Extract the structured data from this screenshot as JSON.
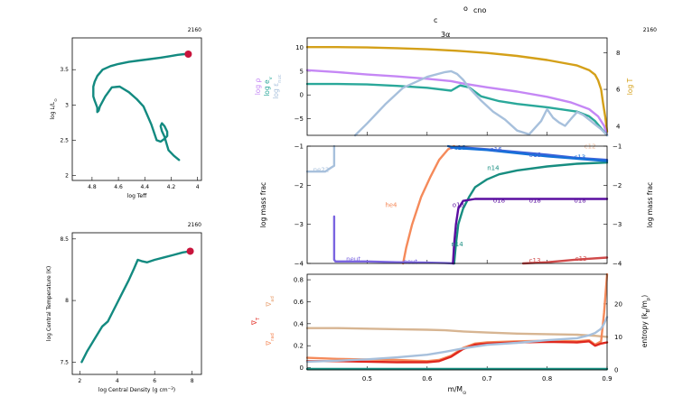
{
  "chart_data": [
    {
      "id": "hr",
      "type": "line",
      "title_right": "2160",
      "xlabel": "log Teff",
      "ylabel": "log L/L",
      "ylabel_sub": "⊙",
      "xlim": [
        4.95,
        3.97
      ],
      "ylim": [
        1.93,
        3.95
      ],
      "xticks": [
        4.8,
        4.6,
        4.4,
        4.2,
        4
      ],
      "xtick_labels": [
        "4.8",
        "4.6",
        "4.4",
        "4.2",
        "4"
      ],
      "yticks": [
        2,
        2.5,
        3,
        3.5
      ],
      "ytick_labels": [
        "2",
        "2.5",
        "3",
        "3.5"
      ],
      "color": "#138a80",
      "marker_color": "#c8143c",
      "x": [
        4.14,
        4.18,
        4.22,
        4.23,
        4.25,
        4.27,
        4.28,
        4.27,
        4.25,
        4.23,
        4.23,
        4.25,
        4.28,
        4.31,
        4.35,
        4.38,
        4.41,
        4.46,
        4.52,
        4.59,
        4.65,
        4.7,
        4.74,
        4.75,
        4.76,
        4.76,
        4.77,
        4.78,
        4.79,
        4.79,
        4.78,
        4.76,
        4.72,
        4.66,
        4.6,
        4.52,
        4.44,
        4.36,
        4.28,
        4.21,
        4.15,
        4.1,
        4.08,
        4.07
      ],
      "y": [
        2.22,
        2.28,
        2.36,
        2.42,
        2.55,
        2.63,
        2.7,
        2.74,
        2.7,
        2.62,
        2.56,
        2.52,
        2.48,
        2.5,
        2.72,
        2.85,
        2.98,
        3.08,
        3.18,
        3.26,
        3.25,
        3.12,
        2.98,
        2.92,
        2.9,
        2.96,
        3.01,
        3.06,
        3.12,
        3.26,
        3.33,
        3.41,
        3.5,
        3.55,
        3.58,
        3.61,
        3.63,
        3.65,
        3.67,
        3.69,
        3.71,
        3.72,
        3.72,
        3.72
      ],
      "marker": [
        4.07,
        3.72
      ]
    },
    {
      "id": "rho-t",
      "type": "line",
      "title_right": "2160",
      "xlabel": "log Central Density (g cm",
      "xlabel_sup": "−3",
      "xlabel_end": ")",
      "ylabel": "log Central Temperature (K)",
      "xlim": [
        1.6,
        8.5
      ],
      "ylim": [
        7.4,
        8.55
      ],
      "xticks": [
        2,
        4,
        6,
        8
      ],
      "xtick_labels": [
        "2",
        "4",
        "6",
        "8"
      ],
      "yticks": [
        7.5,
        8,
        8.5
      ],
      "ytick_labels": [
        "7.5",
        "8",
        "8.5"
      ],
      "color": "#138a80",
      "marker_color": "#c8143c",
      "x": [
        2.1,
        2.4,
        2.8,
        3.2,
        3.5,
        3.8,
        4.2,
        4.6,
        4.9,
        5.1,
        5.3,
        5.6,
        6.0,
        6.5,
        7.0,
        7.5,
        7.9
      ],
      "y": [
        7.5,
        7.59,
        7.69,
        7.79,
        7.83,
        7.92,
        8.04,
        8.16,
        8.26,
        8.33,
        8.32,
        8.31,
        8.33,
        8.35,
        8.37,
        8.39,
        8.4
      ],
      "marker": [
        7.9,
        8.4
      ]
    },
    {
      "id": "profile-top",
      "type": "line",
      "title_right": "2160",
      "xlim": [
        0.4,
        0.9
      ],
      "ylim_left": [
        -8.5,
        12
      ],
      "ylim_right": [
        3.5,
        8.8
      ],
      "yticks_left": [
        -5,
        0,
        5,
        10
      ],
      "ytick_labels_left": [
        "−5",
        "0",
        "5",
        "10"
      ],
      "yticks_right": [
        4,
        6,
        8
      ],
      "ytick_labels_right": [
        "4",
        "6",
        "8"
      ],
      "left_labels": [
        {
          "text": "log ρ",
          "color": "#c587f5"
        },
        {
          "text": "log e",
          "sub": "v",
          "color": "#2aa89a"
        },
        {
          "text": "log ε",
          "sub": "nuc",
          "color": "#a7c0dc"
        }
      ],
      "right_label": {
        "text": "log T",
        "color": "#d4a019"
      },
      "series": [
        {
          "name": "logT",
          "axis": "right",
          "color": "#d4a019",
          "x": [
            0.4,
            0.45,
            0.5,
            0.55,
            0.6,
            0.65,
            0.7,
            0.75,
            0.8,
            0.85,
            0.87,
            0.88,
            0.885,
            0.89,
            0.893,
            0.897,
            0.9
          ],
          "y": [
            8.3,
            8.3,
            8.28,
            8.24,
            8.18,
            8.1,
            7.98,
            7.82,
            7.6,
            7.3,
            7.05,
            6.8,
            6.5,
            6.0,
            5.3,
            4.5,
            3.7
          ]
        },
        {
          "name": "logRho",
          "axis": "left",
          "color": "#c587f5",
          "x": [
            0.4,
            0.45,
            0.5,
            0.55,
            0.6,
            0.64,
            0.66,
            0.7,
            0.75,
            0.8,
            0.84,
            0.87,
            0.885,
            0.895,
            0.9
          ],
          "y": [
            5.2,
            4.8,
            4.3,
            3.9,
            3.4,
            2.9,
            2.4,
            1.6,
            0.7,
            -0.4,
            -1.6,
            -3,
            -4.5,
            -6.5,
            -8.5
          ]
        },
        {
          "name": "logE",
          "axis": "left",
          "color": "#2aa89a",
          "x": [
            0.4,
            0.45,
            0.5,
            0.55,
            0.6,
            0.64,
            0.655,
            0.67,
            0.69,
            0.72,
            0.75,
            0.8,
            0.85,
            0.87,
            0.88,
            0.89,
            0.9
          ],
          "y": [
            2.3,
            2.3,
            2.2,
            1.9,
            1.5,
            0.9,
            2.0,
            1.6,
            -0.3,
            -1.3,
            -1.9,
            -2.6,
            -3.5,
            -4.5,
            -5.5,
            -7,
            -8.5
          ]
        },
        {
          "name": "logEps",
          "axis": "left",
          "color": "#a7c0dc",
          "x": [
            0.48,
            0.5,
            0.53,
            0.56,
            0.6,
            0.63,
            0.64,
            0.65,
            0.66,
            0.67,
            0.69,
            0.71,
            0.73,
            0.75,
            0.77,
            0.79,
            0.8,
            0.81,
            0.82,
            0.83,
            0.84,
            0.85,
            0.86,
            0.87,
            0.88,
            0.89,
            0.9
          ],
          "y": [
            -8.5,
            -6,
            -2,
            1.5,
            3.8,
            4.8,
            5.0,
            4.4,
            3.2,
            1.5,
            -1.2,
            -3.5,
            -5.2,
            -7.5,
            -8.3,
            -5.5,
            -3.0,
            -4.8,
            -5.8,
            -6.5,
            -5.0,
            -3.6,
            -4.2,
            -5.2,
            -6.2,
            -7.2,
            -8.5
          ]
        }
      ]
    },
    {
      "id": "profile-mid",
      "type": "line",
      "xlim": [
        0.4,
        0.9
      ],
      "ylim": [
        -4,
        -1
      ],
      "yticks": [
        -4,
        -3,
        -2,
        -1
      ],
      "ytick_labels": [
        "−4",
        "−3",
        "−2",
        "−1"
      ],
      "ylabel_left": "log mass frac",
      "ylabel_right": "log mass frac",
      "series": [
        {
          "name": "ne22",
          "color": "#a7c0dc",
          "x": [
            0.4,
            0.43,
            0.44,
            0.445,
            0.445
          ],
          "y": [
            -1.65,
            -1.65,
            -1.55,
            -1.5,
            -1.0
          ]
        },
        {
          "name": "he4",
          "color": "#f58a5a",
          "x": [
            0.56,
            0.565,
            0.575,
            0.59,
            0.605,
            0.62,
            0.635,
            0.645
          ],
          "y": [
            -4,
            -3.6,
            -3.0,
            -2.3,
            -1.8,
            -1.35,
            -1.08,
            -1.0
          ]
        },
        {
          "name": "neut",
          "color": "#7a64e0",
          "x": [
            0.445,
            0.445,
            0.447,
            0.46,
            0.5,
            0.55,
            0.6,
            0.63,
            0.645
          ],
          "y": [
            -2.8,
            -3.9,
            -3.95,
            -3.95,
            -3.95,
            -3.97,
            -3.98,
            -3.99,
            -4
          ]
        },
        {
          "name": "n14",
          "color": "#178d80",
          "x": [
            0.645,
            0.648,
            0.652,
            0.66,
            0.67,
            0.68,
            0.7,
            0.72,
            0.75,
            0.8,
            0.85,
            0.9
          ],
          "y": [
            -4,
            -3.5,
            -3.0,
            -2.6,
            -2.3,
            -2.05,
            -1.85,
            -1.72,
            -1.62,
            -1.52,
            -1.45,
            -1.42
          ]
        },
        {
          "name": "o16",
          "color": "#3f62d8",
          "x": [
            0.64,
            0.65,
            0.7,
            0.75,
            0.8,
            0.85,
            0.9
          ],
          "y": [
            -1.05,
            -1.02,
            -1.08,
            -1.15,
            -1.22,
            -1.3,
            -1.35
          ]
        },
        {
          "name": "c12",
          "color": "#1470d8",
          "x": [
            0.635,
            0.65,
            0.7,
            0.75,
            0.8,
            0.85,
            0.9
          ],
          "y": [
            -1.0,
            -1.05,
            -1.1,
            -1.18,
            -1.26,
            -1.32,
            -1.38
          ]
        },
        {
          "name": "o18",
          "color": "#5a0ea0",
          "x": [
            0.643,
            0.645,
            0.648,
            0.652,
            0.66,
            0.68,
            0.72,
            0.8,
            0.9
          ],
          "y": [
            -4,
            -3.5,
            -3.0,
            -2.6,
            -2.4,
            -2.35,
            -2.35,
            -2.35,
            -2.35
          ]
        },
        {
          "name": "c13",
          "color": "#d04a4a",
          "x": [
            0.76,
            0.8,
            0.85,
            0.9
          ],
          "y": [
            -4,
            -3.97,
            -3.9,
            -3.85
          ]
        }
      ],
      "labels": [
        {
          "text": "ne22",
          "x": 0.41,
          "y": -1.6,
          "color": "#a7c0dc"
        },
        {
          "text": "c16",
          "x": 0.645,
          "y": -1.03,
          "color": "#1470d8"
        },
        {
          "text": "o16",
          "x": 0.705,
          "y": -1.08,
          "color": "#3f62d8"
        },
        {
          "text": "o16",
          "x": 0.77,
          "y": -1.22,
          "color": "#3f62d8"
        },
        {
          "text": "c13",
          "x": 0.845,
          "y": -1.28,
          "color": "#1470d8"
        },
        {
          "text": "c12",
          "x": 0.862,
          "y": -1.0,
          "color": "#e8b898"
        },
        {
          "text": "n14",
          "x": 0.7,
          "y": -1.55,
          "color": "#178d80"
        },
        {
          "text": "o18",
          "x": 0.71,
          "y": -2.38,
          "color": "#5a0ea0"
        },
        {
          "text": "o18",
          "x": 0.77,
          "y": -2.38,
          "color": "#5a0ea0"
        },
        {
          "text": "o18",
          "x": 0.845,
          "y": -2.38,
          "color": "#5a0ea0"
        },
        {
          "text": "o18",
          "x": 0.642,
          "y": -2.5,
          "color": "#5a0ea0"
        },
        {
          "text": "he4",
          "x": 0.53,
          "y": -2.5,
          "color": "#f58a5a"
        },
        {
          "text": "n14",
          "x": 0.64,
          "y": -3.5,
          "color": "#178d80"
        },
        {
          "text": "neut",
          "x": 0.465,
          "y": -3.88,
          "color": "#7a64e0"
        },
        {
          "text": "neut",
          "x": 0.56,
          "y": -3.95,
          "color": "#7a64e0"
        },
        {
          "text": "c13",
          "x": 0.77,
          "y": -3.92,
          "color": "#d04a4a"
        },
        {
          "text": "c13",
          "x": 0.847,
          "y": -3.87,
          "color": "#d04a4a"
        }
      ]
    },
    {
      "id": "profile-bottom",
      "type": "line",
      "xlim": [
        0.4,
        0.9
      ],
      "xticks": [
        0.5,
        0.6,
        0.7,
        0.8,
        0.9
      ],
      "xtick_labels": [
        "0.5",
        "0.6",
        "0.7",
        "0.8",
        "0.9"
      ],
      "xlabel": "m/M",
      "xlabel_sub": "⊙",
      "ylim_left": [
        -0.02,
        0.85
      ],
      "ylim_right": [
        0,
        29
      ],
      "yticks_left": [
        0,
        0.2,
        0.4,
        0.6,
        0.8
      ],
      "ytick_labels_left": [
        "0",
        "0.2",
        "0.4",
        "0.6",
        "0.8"
      ],
      "yticks_right": [
        0,
        10,
        20
      ],
      "ytick_labels_right": [
        "0",
        "10",
        "20"
      ],
      "left_labels": [
        {
          "text": "∇",
          "sub": "ad",
          "color": "#e8a070"
        },
        {
          "text": "∇",
          "sub": "T",
          "color": "#e0281e"
        },
        {
          "text": "∇",
          "sub": "rad",
          "color": "#f58a5a"
        }
      ],
      "right_label": {
        "text": "entropy (k",
        "sub": "B",
        "mid": "/m",
        "sub2": "p",
        "end": ")",
        "color": "#000000"
      },
      "series": [
        {
          "name": "gradAd",
          "axis": "left",
          "color": "#d7b592",
          "x": [
            0.4,
            0.45,
            0.5,
            0.55,
            0.6,
            0.63,
            0.66,
            0.7,
            0.75,
            0.8,
            0.85,
            0.88,
            0.9
          ],
          "y": [
            0.36,
            0.36,
            0.355,
            0.35,
            0.345,
            0.34,
            0.33,
            0.32,
            0.31,
            0.305,
            0.3,
            0.29,
            0.28
          ]
        },
        {
          "name": "gradRad",
          "axis": "left",
          "color": "#f58a5a",
          "x": [
            0.4,
            0.45,
            0.5,
            0.55,
            0.6,
            0.62,
            0.64,
            0.66,
            0.68,
            0.7,
            0.75,
            0.8,
            0.85,
            0.87,
            0.88,
            0.89,
            0.895,
            0.9
          ],
          "y": [
            0.09,
            0.08,
            0.075,
            0.07,
            0.06,
            0.07,
            0.11,
            0.18,
            0.22,
            0.23,
            0.24,
            0.245,
            0.24,
            0.25,
            0.21,
            0.24,
            0.5,
            0.85
          ]
        },
        {
          "name": "gradT",
          "axis": "left",
          "color": "#e0281e",
          "x": [
            0.4,
            0.45,
            0.5,
            0.55,
            0.6,
            0.62,
            0.64,
            0.66,
            0.68,
            0.7,
            0.75,
            0.8,
            0.85,
            0.87,
            0.88,
            0.89,
            0.9
          ],
          "y": [
            0.06,
            0.06,
            0.055,
            0.05,
            0.05,
            0.06,
            0.1,
            0.17,
            0.21,
            0.22,
            0.23,
            0.235,
            0.23,
            0.24,
            0.2,
            0.22,
            0.23
          ]
        },
        {
          "name": "entropy",
          "axis": "right",
          "color": "#a7c0dc",
          "x": [
            0.4,
            0.45,
            0.5,
            0.55,
            0.6,
            0.63,
            0.66,
            0.7,
            0.75,
            0.8,
            0.85,
            0.87,
            0.88,
            0.89,
            0.895,
            0.9
          ],
          "y": [
            2.5,
            2.8,
            3.2,
            3.8,
            4.6,
            5.5,
            6.5,
            7.6,
            8.2,
            9.0,
            9.6,
            10.5,
            11.2,
            12.5,
            14,
            16
          ]
        },
        {
          "name": "convection",
          "axis": "left",
          "color": "#178d80",
          "x": [
            0.4,
            0.9
          ],
          "y": [
            -0.012,
            -0.012
          ]
        }
      ]
    }
  ],
  "header": {
    "line1": "c",
    "line1b": "o",
    "line1c": "cno",
    "line2": "3α"
  }
}
